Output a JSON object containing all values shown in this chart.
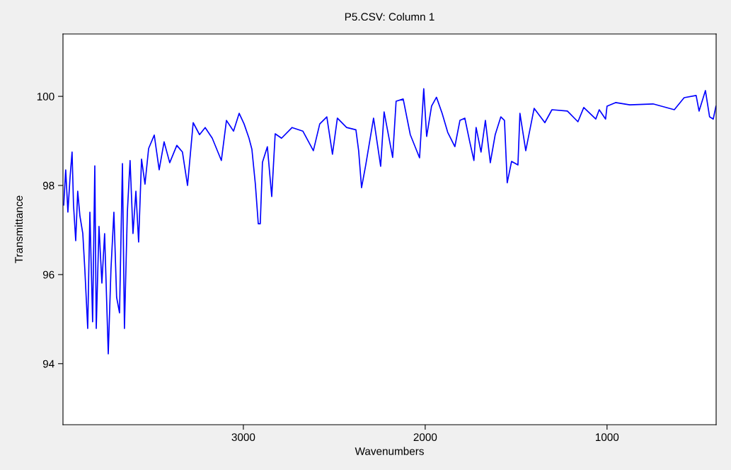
{
  "chart_data": {
    "type": "line",
    "title": "P5.CSV: Column 1",
    "xlabel": "Wavenumbers",
    "ylabel": "Transmittance",
    "xlim": [
      3992,
      400
    ],
    "ylim": [
      92.63,
      101.4
    ],
    "xticks": [
      3000,
      2000,
      1000
    ],
    "yticks": [
      94,
      96,
      98,
      100
    ],
    "grid": false,
    "series": [
      {
        "color": "#0000ff",
        "x": [
          3988,
          3977,
          3965,
          3953,
          3942,
          3934,
          3922,
          3911,
          3899,
          3883,
          3872,
          3856,
          3844,
          3829,
          3817,
          3809,
          3794,
          3778,
          3763,
          3743,
          3728,
          3712,
          3697,
          3681,
          3665,
          3654,
          3638,
          3623,
          3607,
          3591,
          3576,
          3560,
          3541,
          3521,
          3490,
          3463,
          3436,
          3405,
          3366,
          3335,
          3307,
          3276,
          3241,
          3210,
          3171,
          3121,
          3093,
          3054,
          3023,
          2996,
          2969,
          2953,
          2934,
          2918,
          2907,
          2895,
          2868,
          2844,
          2825,
          2790,
          2732,
          2673,
          2615,
          2580,
          2541,
          2510,
          2483,
          2432,
          2381,
          2366,
          2350,
          2327,
          2284,
          2245,
          2226,
          2179,
          2160,
          2121,
          2082,
          2031,
          2008,
          1992,
          1965,
          1938,
          1907,
          1876,
          1837,
          1809,
          1782,
          1755,
          1732,
          1720,
          1693,
          1669,
          1642,
          1615,
          1584,
          1564,
          1549,
          1525,
          1490,
          1479,
          1447,
          1401,
          1342,
          1303,
          1218,
          1160,
          1128,
          1062,
          1043,
          1008,
          1000,
          953,
          875,
          747,
          630,
          576,
          510,
          494,
          459,
          436,
          416,
          401
        ],
        "values": [
          97.56,
          98.35,
          97.4,
          98.19,
          98.75,
          97.56,
          96.76,
          97.87,
          97.32,
          96.92,
          96.13,
          94.79,
          97.4,
          94.94,
          98.44,
          94.79,
          97.08,
          95.81,
          96.92,
          94.22,
          96.13,
          97.4,
          95.49,
          95.14,
          98.49,
          94.79,
          97.4,
          98.56,
          96.92,
          97.87,
          96.73,
          98.59,
          98.03,
          98.83,
          99.13,
          98.35,
          98.98,
          98.51,
          98.9,
          98.75,
          98.0,
          99.41,
          99.14,
          99.3,
          99.06,
          98.56,
          99.46,
          99.22,
          99.62,
          99.38,
          99.06,
          98.81,
          98.03,
          97.14,
          97.14,
          98.52,
          98.87,
          97.75,
          99.16,
          99.06,
          99.3,
          99.22,
          98.78,
          99.38,
          99.54,
          98.7,
          99.51,
          99.3,
          99.25,
          98.78,
          97.95,
          98.46,
          99.51,
          98.43,
          99.65,
          98.63,
          99.89,
          99.94,
          99.14,
          98.62,
          100.17,
          99.1,
          99.78,
          99.98,
          99.62,
          99.19,
          98.87,
          99.46,
          99.51,
          98.98,
          98.56,
          99.3,
          98.75,
          99.46,
          98.51,
          99.14,
          99.54,
          99.46,
          98.06,
          98.54,
          98.46,
          99.62,
          98.78,
          99.73,
          99.41,
          99.7,
          99.67,
          99.43,
          99.75,
          99.49,
          99.7,
          99.49,
          99.78,
          99.86,
          99.81,
          99.83,
          99.7,
          99.97,
          100.02,
          99.67,
          100.13,
          99.54,
          99.49,
          99.78
        ]
      }
    ]
  }
}
